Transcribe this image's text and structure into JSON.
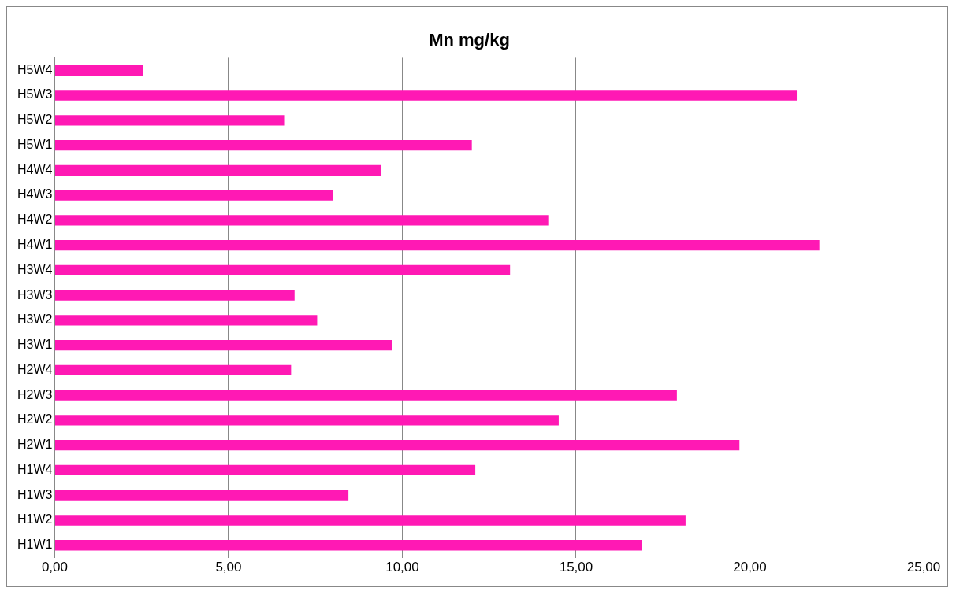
{
  "chart_data": {
    "type": "bar",
    "orientation": "horizontal",
    "title": "Mn mg/kg",
    "categories": [
      "H5W4",
      "H5W3",
      "H5W2",
      "H5W1",
      "H4W4",
      "H4W3",
      "H4W2",
      "H4W1",
      "H3W4",
      "H3W3",
      "H3W2",
      "H3W1",
      "H2W4",
      "H2W3",
      "H2W2",
      "H2W1",
      "H1W4",
      "H1W3",
      "H1W2",
      "H1W1"
    ],
    "values": [
      2.55,
      21.35,
      6.6,
      12.0,
      9.4,
      8.0,
      14.2,
      22.0,
      13.1,
      6.9,
      7.55,
      9.7,
      6.8,
      17.9,
      14.5,
      19.7,
      12.1,
      8.45,
      18.15,
      16.9
    ],
    "color": "#ff19b4",
    "xlim": [
      0,
      25
    ],
    "xticks": [
      {
        "value": 0,
        "label": "0,00"
      },
      {
        "value": 5,
        "label": "5,00"
      },
      {
        "value": 10,
        "label": "10,00"
      },
      {
        "value": 15,
        "label": "15,00"
      },
      {
        "value": 20,
        "label": "20,00"
      },
      {
        "value": 25,
        "label": "25,00"
      }
    ],
    "grid": "x",
    "legend": false
  }
}
